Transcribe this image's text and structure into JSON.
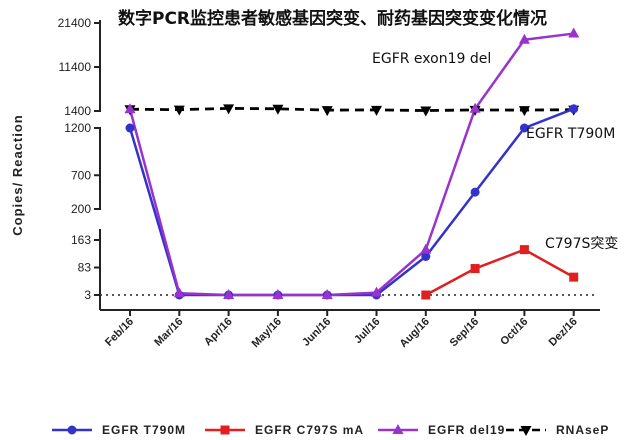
{
  "chart_data": {
    "type": "line",
    "title": "数字PCR监控患者敏感基因突变、耐药基因突变变化情况",
    "ylabel": "Copies/ Reaction",
    "xlabel": "",
    "categories": [
      "Feb/16",
      "Mar/16",
      "Apr/16",
      "May/16",
      "Jun/16",
      "Jul/16",
      "Aug/16",
      "Sep/16",
      "Oct/16",
      "Dez/16"
    ],
    "y_axis_segments": [
      {
        "range": [
          200,
          1400
        ],
        "ticks": [
          "1400",
          "1200",
          "700",
          "200"
        ]
      },
      {
        "range": [
          1400,
          21400
        ],
        "ticks": [
          "21400",
          "11400",
          "1400"
        ]
      },
      {
        "range": [
          3,
          163
        ],
        "ticks": [
          "163",
          "83",
          "3"
        ]
      }
    ],
    "reference_line": {
      "y": 3,
      "style": "dotted"
    },
    "series": [
      {
        "name": "EGFR T790M",
        "color": "#3333cc",
        "marker": "circle",
        "values": [
          1400,
          3,
          3,
          3,
          3,
          3,
          115,
          450,
          1400,
          1900
        ]
      },
      {
        "name": "EGFR C797S mA",
        "color": "#e02020",
        "marker": "square",
        "values": [
          null,
          null,
          null,
          null,
          null,
          null,
          3,
          80,
          135,
          55
        ]
      },
      {
        "name": "EGFR del19",
        "color": "#9933cc",
        "marker": "triangle-up",
        "values": [
          1800,
          8,
          3,
          3,
          3,
          10,
          135,
          1900,
          17600,
          19000
        ]
      },
      {
        "name": "RNAseP",
        "color": "#000000",
        "marker": "triangle-down",
        "dashed": true,
        "values": [
          1800,
          1700,
          2000,
          1900,
          1600,
          1650,
          1500,
          1650,
          1600,
          1700
        ]
      }
    ],
    "annotations": [
      "EGFR exon19 del",
      "EGFR T790M",
      "C797S突变"
    ],
    "legend_position": "bottom"
  }
}
